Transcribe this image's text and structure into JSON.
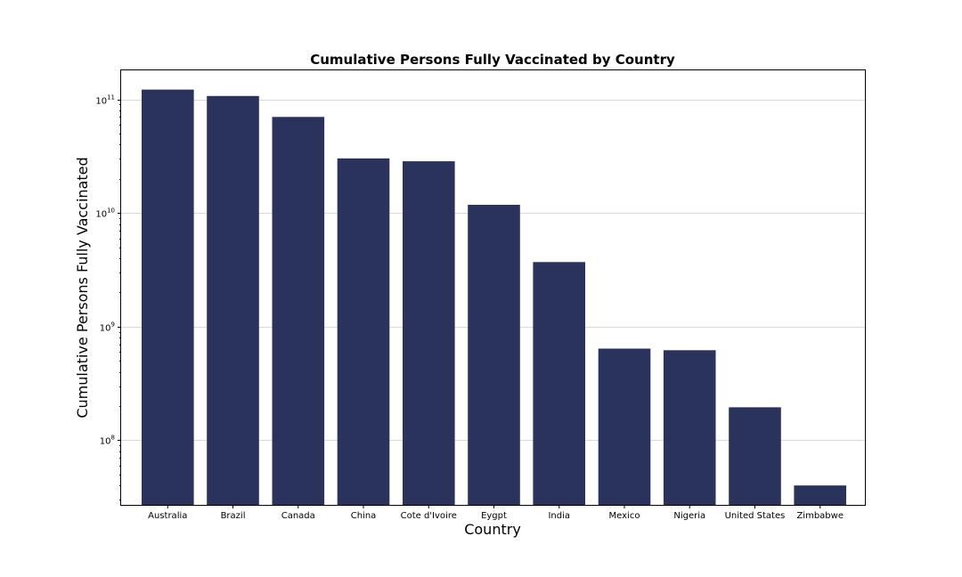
{
  "chart_data": {
    "type": "bar",
    "title": "Cumulative Persons Fully Vaccinated by Country",
    "xlabel": "Country",
    "ylabel": "Cumulative Persons Fully Vaccinated",
    "yscale": "log",
    "ylim": [
      27000000,
      180000000000
    ],
    "grid": "y-major",
    "bar_color": "#2a335c",
    "categories": [
      "Australia",
      "Brazil",
      "Canada",
      "China",
      "Cote d'Ivoire",
      "Eygpt",
      "India",
      "Mexico",
      "Nigeria",
      "United States",
      "Zimbabwe"
    ],
    "values": [
      122000000000,
      107000000000,
      70000000000,
      30200000000,
      28500000000,
      11800000000,
      3700000000,
      640000000,
      620000000,
      195000000,
      40000000
    ],
    "yticks": [
      {
        "value": 100000000,
        "base": "10",
        "exp": "8"
      },
      {
        "value": 1000000000,
        "base": "10",
        "exp": "9"
      },
      {
        "value": 10000000000,
        "base": "10",
        "exp": "10"
      },
      {
        "value": 100000000000,
        "base": "10",
        "exp": "11"
      }
    ]
  }
}
